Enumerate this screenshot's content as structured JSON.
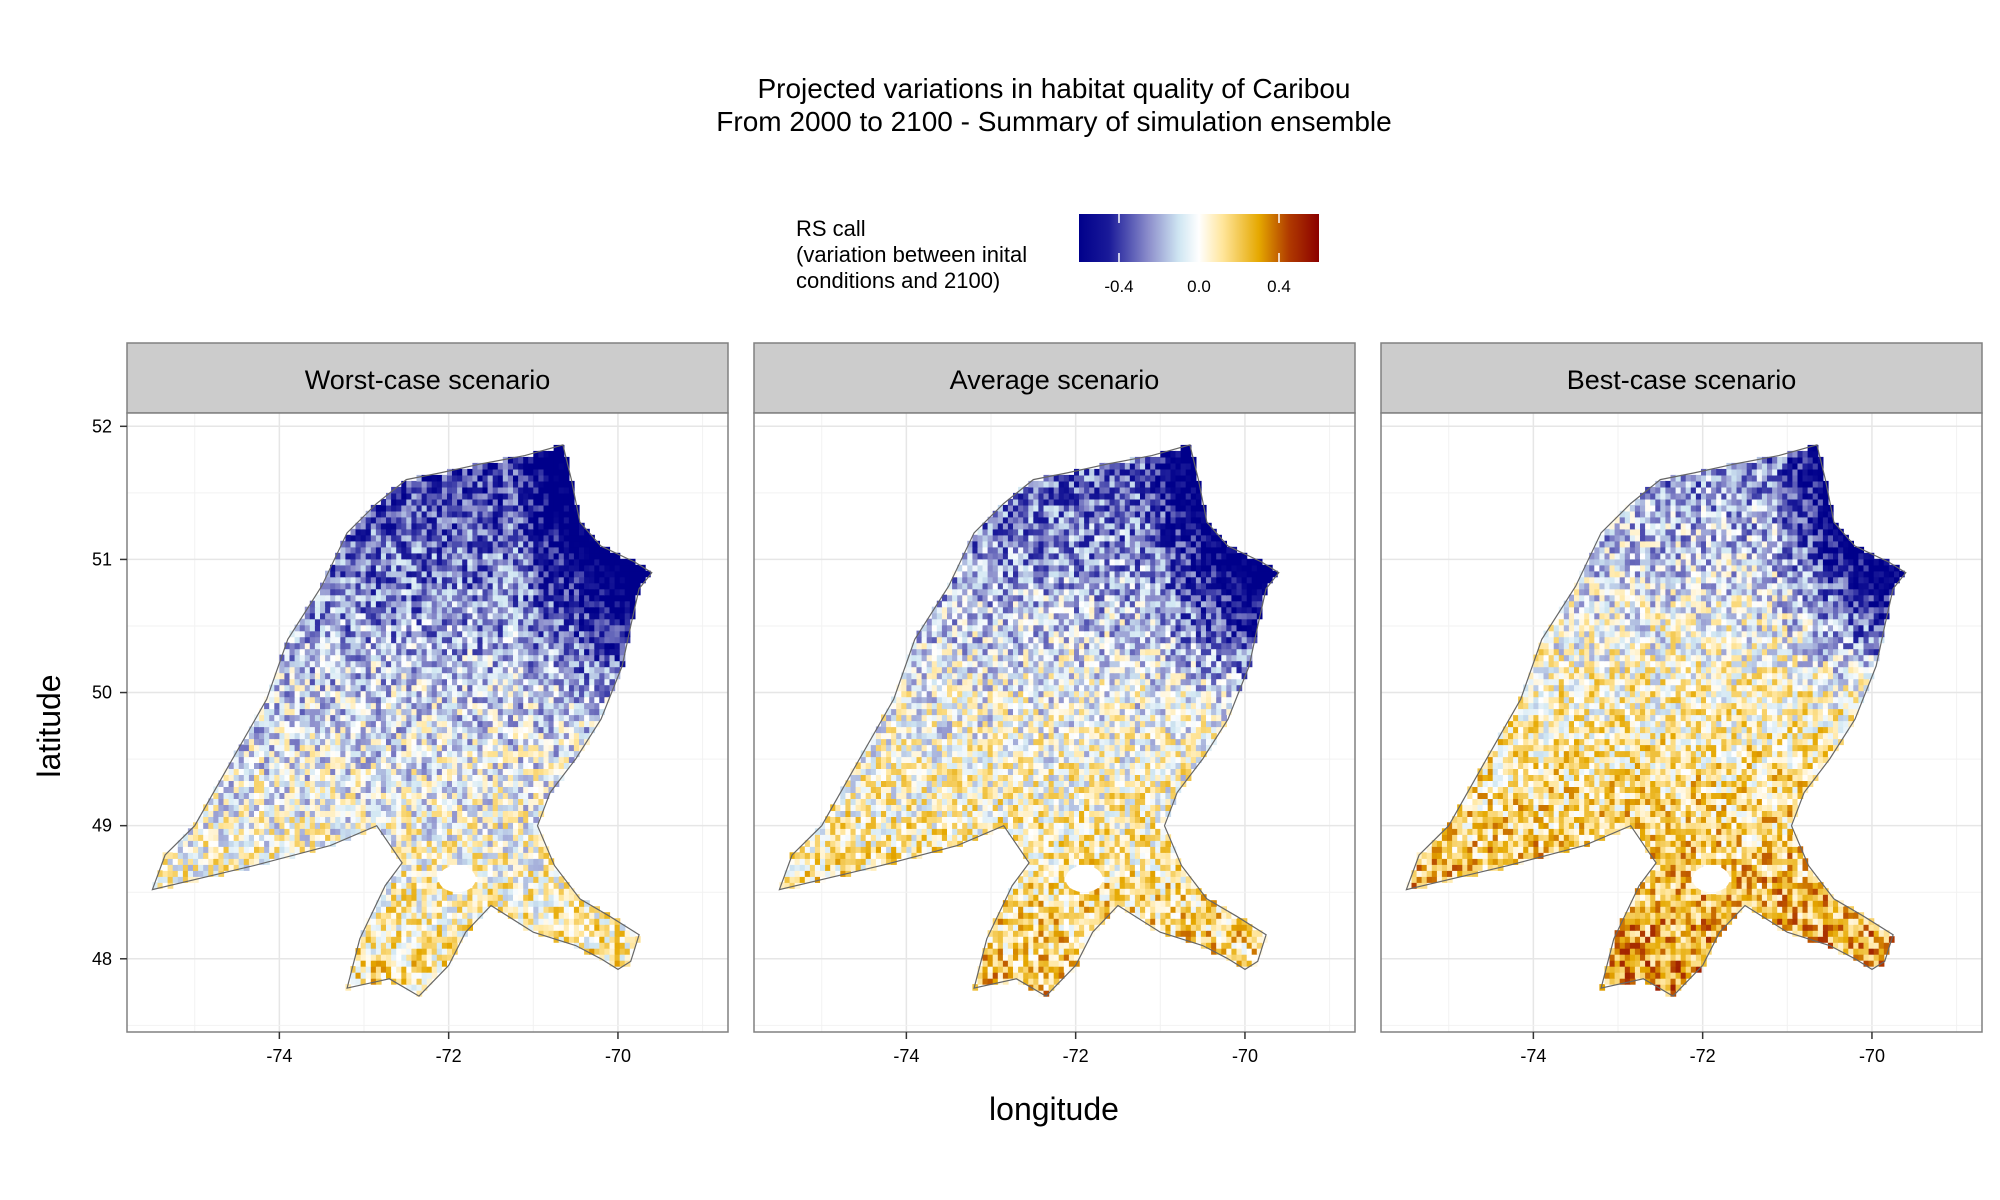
{
  "title_line1": "Projected variations in habitat quality of Caribou",
  "title_line2": "From 2000 to 2100 - Summary of simulation ensemble",
  "legend": {
    "title_lines": [
      "RS call",
      "(variation between inital",
      "conditions and 2100)"
    ],
    "ticks": [
      {
        "value": -0.4,
        "label": "-0.4"
      },
      {
        "value": 0.0,
        "label": "0.0"
      },
      {
        "value": 0.4,
        "label": "0.4"
      }
    ],
    "range": [
      -0.6,
      0.6
    ],
    "stops": [
      {
        "value": -0.6,
        "color": "#00008b"
      },
      {
        "value": -0.45,
        "color": "#1a1a99"
      },
      {
        "value": -0.25,
        "color": "#8d8fcc"
      },
      {
        "value": -0.1,
        "color": "#cfe6f2"
      },
      {
        "value": 0.0,
        "color": "#ffffff"
      },
      {
        "value": 0.12,
        "color": "#ffe59a"
      },
      {
        "value": 0.3,
        "color": "#e5a800"
      },
      {
        "value": 0.45,
        "color": "#b03a00"
      },
      {
        "value": 0.6,
        "color": "#8b0000"
      }
    ]
  },
  "axes": {
    "x_label": "longitude",
    "y_label": "latitude",
    "x_ticks": [
      {
        "value": -74,
        "label": "-74"
      },
      {
        "value": -72,
        "label": "-72"
      },
      {
        "value": -70,
        "label": "-70"
      }
    ],
    "y_ticks": [
      {
        "value": 52,
        "label": "52"
      },
      {
        "value": 51,
        "label": "51"
      },
      {
        "value": 50,
        "label": "50"
      },
      {
        "value": 49,
        "label": "49"
      },
      {
        "value": 48,
        "label": "48"
      }
    ],
    "xlim": [
      -75.8,
      -68.7
    ],
    "ylim": [
      47.45,
      52.1
    ],
    "grid": true
  },
  "panels": [
    {
      "title": "Worst-case scenario",
      "bias": -0.12
    },
    {
      "title": "Average scenario",
      "bias": -0.04
    },
    {
      "title": "Best-case scenario",
      "bias": 0.06
    }
  ],
  "region": {
    "boundary": [
      [
        -75.5,
        48.52
      ],
      [
        -75.35,
        48.78
      ],
      [
        -75.0,
        49.0
      ],
      [
        -74.6,
        49.45
      ],
      [
        -74.15,
        49.95
      ],
      [
        -73.9,
        50.4
      ],
      [
        -73.5,
        50.8
      ],
      [
        -73.2,
        51.2
      ],
      [
        -72.85,
        51.42
      ],
      [
        -72.5,
        51.6
      ],
      [
        -72.1,
        51.65
      ],
      [
        -71.6,
        51.72
      ],
      [
        -71.1,
        51.78
      ],
      [
        -70.65,
        51.86
      ],
      [
        -70.55,
        51.6
      ],
      [
        -70.45,
        51.28
      ],
      [
        -70.2,
        51.1
      ],
      [
        -69.8,
        50.98
      ],
      [
        -69.6,
        50.9
      ],
      [
        -69.75,
        50.78
      ],
      [
        -69.85,
        50.5
      ],
      [
        -69.95,
        50.2
      ],
      [
        -70.2,
        49.8
      ],
      [
        -70.5,
        49.5
      ],
      [
        -70.8,
        49.25
      ],
      [
        -70.95,
        49.0
      ],
      [
        -70.75,
        48.7
      ],
      [
        -70.45,
        48.45
      ],
      [
        -70.1,
        48.32
      ],
      [
        -69.75,
        48.18
      ],
      [
        -69.85,
        47.98
      ],
      [
        -70.0,
        47.92
      ],
      [
        -70.2,
        48.0
      ],
      [
        -70.5,
        48.1
      ],
      [
        -71.0,
        48.2
      ],
      [
        -71.5,
        48.4
      ],
      [
        -71.8,
        48.2
      ],
      [
        -72.0,
        47.95
      ],
      [
        -72.35,
        47.72
      ],
      [
        -72.7,
        47.85
      ],
      [
        -73.2,
        47.78
      ],
      [
        -73.05,
        48.15
      ],
      [
        -72.75,
        48.55
      ],
      [
        -72.55,
        48.72
      ],
      [
        -72.85,
        49.0
      ],
      [
        -73.4,
        48.85
      ],
      [
        -74.3,
        48.7
      ],
      [
        -75.5,
        48.52
      ]
    ],
    "lake": {
      "lon": -71.9,
      "lat": 48.6,
      "rx": 0.22,
      "ry": 0.1
    }
  }
}
